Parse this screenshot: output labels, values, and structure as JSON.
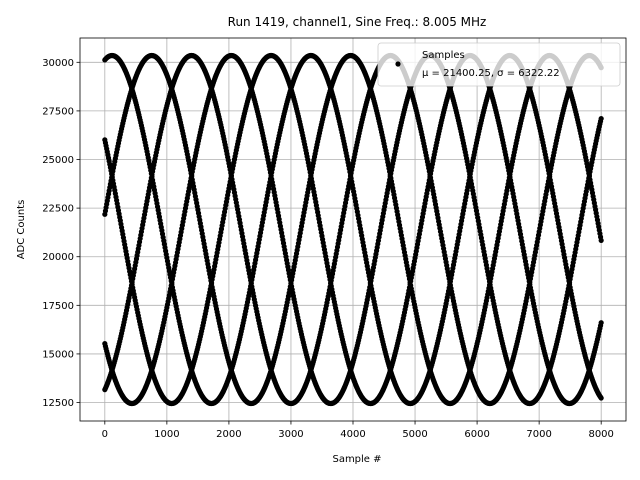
{
  "chart_data": {
    "type": "scatter",
    "title": "Run 1419, channel1, Sine Freq.: 8.005 MHz",
    "xlabel": "Sample #",
    "ylabel": "ADC Counts",
    "xlim": [
      -400,
      8400
    ],
    "ylim": [
      11550,
      31250
    ],
    "xticks": [
      0,
      1000,
      2000,
      3000,
      4000,
      5000,
      6000,
      7000,
      8000
    ],
    "xtick_labels": [
      "0",
      "1000",
      "2000",
      "3000",
      "4000",
      "5000",
      "6000",
      "7000",
      "8000"
    ],
    "yticks": [
      12500,
      15000,
      17500,
      20000,
      22500,
      25000,
      27500,
      30000
    ],
    "ytick_labels": [
      "12500",
      "15000",
      "17500",
      "20000",
      "22500",
      "25000",
      "27500",
      "30000"
    ],
    "grid": true,
    "legend_position": "top-right",
    "color": "#000000",
    "series": [
      {
        "name": "Samples",
        "stats_label": "μ = 21400.25, σ = 6322.22",
        "mean": 21400.25,
        "sigma": 6322.22,
        "amplitude": 8950,
        "period_samples": 3205,
        "phases_deg": [
          5,
          77,
          149,
          221,
          293
        ],
        "x_range": [
          0,
          8000
        ]
      }
    ]
  }
}
